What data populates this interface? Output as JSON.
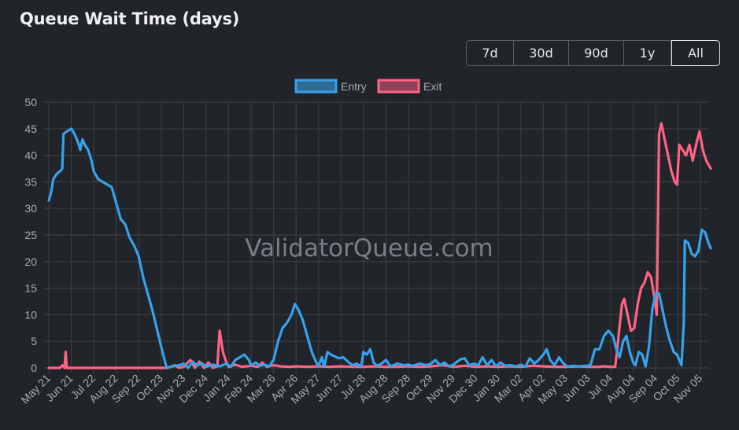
{
  "header": {
    "title": "Queue Wait Time (days)"
  },
  "range_selector": {
    "buttons": [
      {
        "label": "7d",
        "active": false
      },
      {
        "label": "30d",
        "active": false
      },
      {
        "label": "90d",
        "active": false
      },
      {
        "label": "1y",
        "active": false
      },
      {
        "label": "All",
        "active": true
      }
    ]
  },
  "watermark": "ValidatorQueue.com",
  "colors": {
    "background": "#212429",
    "grid": "#3a3d42",
    "entry": "#36a2eb",
    "exit": "#ff6384",
    "entry_fill": "#2f6a94",
    "exit_fill": "#8c4358"
  },
  "chart_data": {
    "type": "line",
    "title": "Queue Wait Time (days)",
    "xlabel": "",
    "ylabel": "",
    "ylim": [
      0,
      50
    ],
    "yticks": [
      0,
      5,
      10,
      15,
      20,
      25,
      30,
      35,
      40,
      45,
      50
    ],
    "grid": true,
    "legend_position": "top",
    "categories": [
      "May 21",
      "Jun 21",
      "Jul 22",
      "Aug 22",
      "Sep 22",
      "Oct 23",
      "Nov 23",
      "Dec 24",
      "Jan 24",
      "Feb 24",
      "Mar 26",
      "Apr 26",
      "May 27",
      "Jun 27",
      "Jul 28",
      "Aug 28",
      "Sep 28",
      "Oct 29",
      "Nov 29",
      "Dec 30",
      "Jan 30",
      "Mar 02",
      "Apr 02",
      "May 03",
      "Jun 03",
      "Jul 04",
      "Aug 04",
      "Sep 04",
      "Oct 05",
      "Nov 05"
    ],
    "series": [
      {
        "name": "Entry",
        "color": "#36a2eb",
        "points": [
          [
            0.0,
            31.5
          ],
          [
            0.1,
            33
          ],
          [
            0.2,
            35.5
          ],
          [
            0.35,
            36.5
          ],
          [
            0.5,
            37
          ],
          [
            0.6,
            37.5
          ],
          [
            0.65,
            44
          ],
          [
            0.8,
            44.5
          ],
          [
            1.0,
            45
          ],
          [
            1.15,
            44
          ],
          [
            1.3,
            42.5
          ],
          [
            1.4,
            41
          ],
          [
            1.5,
            43
          ],
          [
            1.6,
            42
          ],
          [
            1.75,
            41
          ],
          [
            1.9,
            39
          ],
          [
            2.0,
            37
          ],
          [
            2.2,
            35.5
          ],
          [
            2.4,
            35
          ],
          [
            2.6,
            34.5
          ],
          [
            2.8,
            34
          ],
          [
            3.0,
            31
          ],
          [
            3.2,
            28
          ],
          [
            3.4,
            27
          ],
          [
            3.6,
            24.5
          ],
          [
            3.8,
            23
          ],
          [
            4.0,
            21
          ],
          [
            4.2,
            17
          ],
          [
            4.4,
            14
          ],
          [
            4.6,
            11
          ],
          [
            4.8,
            7.5
          ],
          [
            5.0,
            4
          ],
          [
            5.15,
            1.5
          ],
          [
            5.25,
            0
          ],
          [
            5.5,
            0.3
          ],
          [
            5.8,
            0.5
          ],
          [
            6.0,
            0.8
          ],
          [
            6.2,
            0
          ],
          [
            6.4,
            1.2
          ],
          [
            6.6,
            0.4
          ],
          [
            6.8,
            0.9
          ],
          [
            7.0,
            0.2
          ],
          [
            7.3,
            0.6
          ],
          [
            7.6,
            0.3
          ],
          [
            7.9,
            0.8
          ],
          [
            8.1,
            0.2
          ],
          [
            8.3,
            1.5
          ],
          [
            8.5,
            2
          ],
          [
            8.7,
            2.5
          ],
          [
            8.9,
            1.5
          ],
          [
            9.0,
            0.5
          ],
          [
            9.2,
            1
          ],
          [
            9.4,
            0.4
          ],
          [
            9.6,
            0.6
          ],
          [
            9.8,
            0.3
          ],
          [
            10.0,
            1.5
          ],
          [
            10.2,
            5
          ],
          [
            10.4,
            7.5
          ],
          [
            10.6,
            8.5
          ],
          [
            10.8,
            10
          ],
          [
            10.95,
            12
          ],
          [
            11.1,
            11
          ],
          [
            11.3,
            9
          ],
          [
            11.5,
            6
          ],
          [
            11.7,
            3
          ],
          [
            11.9,
            1
          ],
          [
            12.0,
            0.3
          ],
          [
            12.15,
            2
          ],
          [
            12.25,
            0.2
          ],
          [
            12.4,
            3
          ],
          [
            12.55,
            2.5
          ],
          [
            12.7,
            2.2
          ],
          [
            12.9,
            1.8
          ],
          [
            13.1,
            2
          ],
          [
            13.3,
            1.2
          ],
          [
            13.5,
            0.5
          ],
          [
            13.7,
            0.8
          ],
          [
            13.9,
            0.2
          ],
          [
            14.0,
            3
          ],
          [
            14.15,
            2.5
          ],
          [
            14.3,
            3.5
          ],
          [
            14.45,
            1
          ],
          [
            14.6,
            0.4
          ],
          [
            14.8,
            0.8
          ],
          [
            15.0,
            1.5
          ],
          [
            15.2,
            0.3
          ],
          [
            15.5,
            0.8
          ],
          [
            15.8,
            0.5
          ],
          [
            16.0,
            0.6
          ],
          [
            16.2,
            0.4
          ],
          [
            16.5,
            0.8
          ],
          [
            16.8,
            0.5
          ],
          [
            17.0,
            0.8
          ],
          [
            17.2,
            1.5
          ],
          [
            17.4,
            0.5
          ],
          [
            17.6,
            1
          ],
          [
            17.8,
            0.3
          ],
          [
            18.0,
            0.6
          ],
          [
            18.3,
            1.6
          ],
          [
            18.5,
            1.8
          ],
          [
            18.7,
            0.5
          ],
          [
            18.9,
            0.8
          ],
          [
            19.1,
            0.5
          ],
          [
            19.3,
            2
          ],
          [
            19.5,
            0.5
          ],
          [
            19.7,
            1.5
          ],
          [
            19.9,
            0.3
          ],
          [
            20.1,
            1
          ],
          [
            20.3,
            0.4
          ],
          [
            20.5,
            0.5
          ],
          [
            20.8,
            0.3
          ],
          [
            21.0,
            0.6
          ],
          [
            21.2,
            0.2
          ],
          [
            21.4,
            1.8
          ],
          [
            21.6,
            0.8
          ],
          [
            21.8,
            1.5
          ],
          [
            22.0,
            2.5
          ],
          [
            22.15,
            3.5
          ],
          [
            22.3,
            1.5
          ],
          [
            22.5,
            0.5
          ],
          [
            22.7,
            2
          ],
          [
            22.9,
            0.8
          ],
          [
            23.1,
            0.2
          ],
          [
            23.3,
            0.4
          ],
          [
            23.6,
            0.3
          ],
          [
            23.9,
            0.4
          ],
          [
            24.1,
            0.5
          ],
          [
            24.3,
            3.5
          ],
          [
            24.5,
            3.5
          ],
          [
            24.7,
            6
          ],
          [
            24.9,
            7
          ],
          [
            25.1,
            6
          ],
          [
            25.25,
            3.5
          ],
          [
            25.4,
            2
          ],
          [
            25.55,
            5
          ],
          [
            25.7,
            6
          ],
          [
            25.85,
            3
          ],
          [
            26.0,
            1
          ],
          [
            26.1,
            0.5
          ],
          [
            26.25,
            3
          ],
          [
            26.4,
            2.5
          ],
          [
            26.55,
            0.3
          ],
          [
            26.7,
            4
          ],
          [
            26.85,
            11
          ],
          [
            27.0,
            14
          ],
          [
            27.15,
            14
          ],
          [
            27.3,
            11
          ],
          [
            27.45,
            8
          ],
          [
            27.6,
            5.5
          ],
          [
            27.8,
            3
          ],
          [
            27.95,
            2.5
          ],
          [
            28.05,
            1.5
          ],
          [
            28.15,
            0.5
          ],
          [
            28.25,
            8.5
          ],
          [
            28.3,
            24
          ],
          [
            28.45,
            23.5
          ],
          [
            28.6,
            21.5
          ],
          [
            28.75,
            21
          ],
          [
            28.9,
            22
          ],
          [
            29.05,
            26
          ],
          [
            29.2,
            25.5
          ],
          [
            29.35,
            23.5
          ],
          [
            29.45,
            22.5
          ]
        ]
      },
      {
        "name": "Exit",
        "color": "#ff6384",
        "points": [
          [
            0.0,
            0
          ],
          [
            0.5,
            0
          ],
          [
            0.6,
            0.5
          ],
          [
            0.7,
            0
          ],
          [
            0.75,
            3
          ],
          [
            0.8,
            0
          ],
          [
            0.9,
            0
          ],
          [
            1.5,
            0
          ],
          [
            2.5,
            0
          ],
          [
            3.5,
            0
          ],
          [
            4.5,
            0
          ],
          [
            5.0,
            0
          ],
          [
            5.3,
            0
          ],
          [
            5.6,
            0.5
          ],
          [
            5.8,
            0
          ],
          [
            6.0,
            0.2
          ],
          [
            6.3,
            1.5
          ],
          [
            6.5,
            0
          ],
          [
            6.7,
            1.2
          ],
          [
            6.9,
            0
          ],
          [
            7.1,
            1
          ],
          [
            7.3,
            0
          ],
          [
            7.5,
            0.3
          ],
          [
            7.6,
            7
          ],
          [
            7.75,
            3
          ],
          [
            7.9,
            1
          ],
          [
            8.0,
            0.2
          ],
          [
            8.3,
            0.6
          ],
          [
            8.6,
            0.2
          ],
          [
            9.0,
            0.4
          ],
          [
            9.3,
            0.2
          ],
          [
            9.5,
            1
          ],
          [
            9.7,
            0.2
          ],
          [
            10.0,
            0.5
          ],
          [
            10.3,
            0.3
          ],
          [
            10.7,
            0.2
          ],
          [
            11.0,
            0.3
          ],
          [
            11.5,
            0.2
          ],
          [
            12.0,
            0.3
          ],
          [
            12.5,
            0.2
          ],
          [
            13.0,
            0.3
          ],
          [
            13.5,
            0.2
          ],
          [
            14.0,
            0.2
          ],
          [
            14.5,
            0.3
          ],
          [
            15.0,
            0.2
          ],
          [
            15.5,
            0.2
          ],
          [
            16.0,
            0.3
          ],
          [
            16.5,
            0.2
          ],
          [
            17.0,
            0.3
          ],
          [
            17.5,
            0.5
          ],
          [
            18.0,
            0.2
          ],
          [
            18.5,
            0.4
          ],
          [
            19.0,
            0.2
          ],
          [
            19.5,
            0.3
          ],
          [
            20.0,
            0.2
          ],
          [
            20.5,
            0.3
          ],
          [
            21.0,
            0.2
          ],
          [
            21.5,
            0.4
          ],
          [
            22.0,
            0.3
          ],
          [
            22.5,
            0.2
          ],
          [
            23.0,
            0.2
          ],
          [
            23.5,
            0.3
          ],
          [
            24.0,
            0.2
          ],
          [
            24.5,
            0.2
          ],
          [
            24.7,
            0.3
          ],
          [
            25.0,
            0.2
          ],
          [
            25.2,
            0.2
          ],
          [
            25.3,
            4
          ],
          [
            25.4,
            8
          ],
          [
            25.5,
            12
          ],
          [
            25.6,
            13
          ],
          [
            25.75,
            10
          ],
          [
            25.9,
            7
          ],
          [
            26.05,
            7.5
          ],
          [
            26.2,
            12
          ],
          [
            26.35,
            15
          ],
          [
            26.5,
            16
          ],
          [
            26.65,
            18
          ],
          [
            26.8,
            17
          ],
          [
            26.95,
            13
          ],
          [
            27.05,
            10
          ],
          [
            27.15,
            44
          ],
          [
            27.25,
            46
          ],
          [
            27.4,
            43
          ],
          [
            27.55,
            40
          ],
          [
            27.7,
            37
          ],
          [
            27.85,
            35
          ],
          [
            27.95,
            34.5
          ],
          [
            28.05,
            42
          ],
          [
            28.2,
            41
          ],
          [
            28.35,
            40
          ],
          [
            28.5,
            42
          ],
          [
            28.65,
            39
          ],
          [
            28.8,
            42
          ],
          [
            28.95,
            44.5
          ],
          [
            29.1,
            41
          ],
          [
            29.25,
            39
          ],
          [
            29.45,
            37.5
          ]
        ]
      }
    ]
  }
}
